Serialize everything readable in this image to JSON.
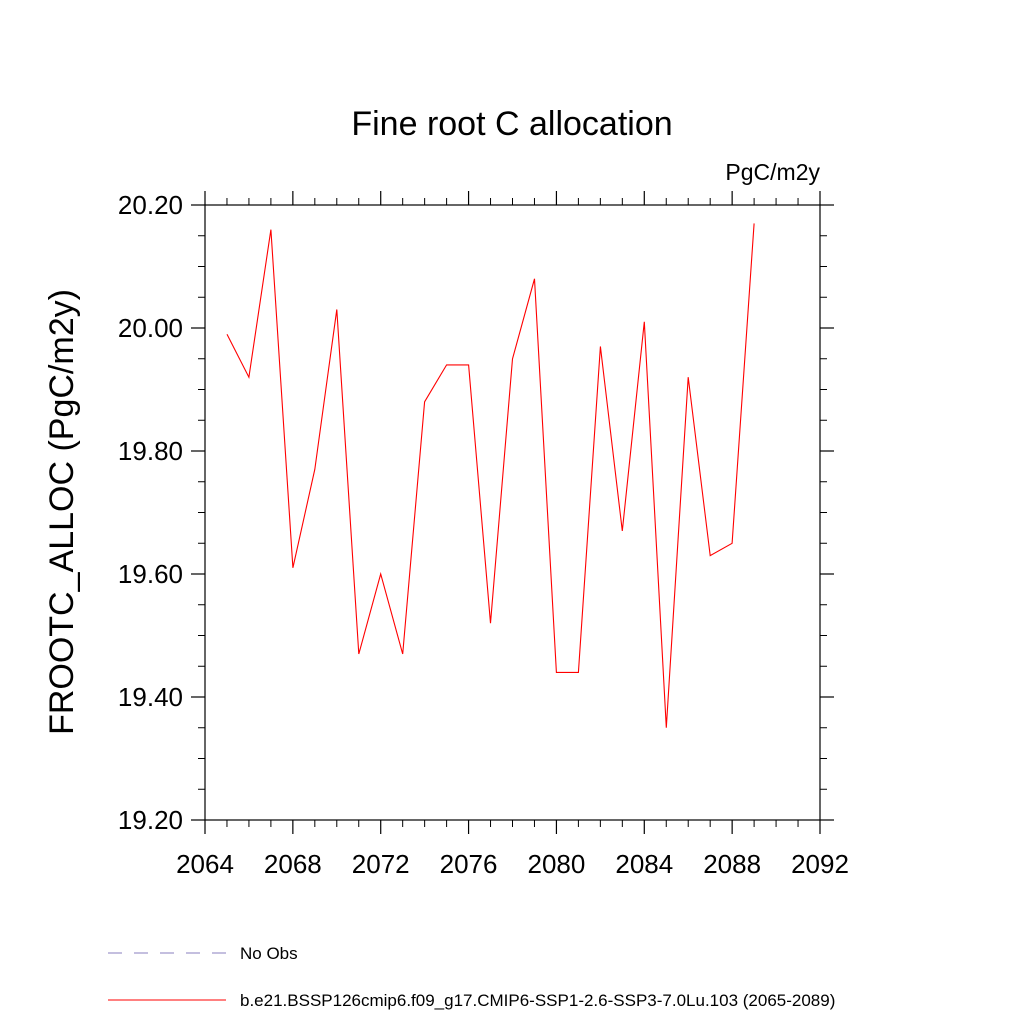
{
  "chart_data": {
    "type": "line",
    "title": "Fine root C allocation",
    "units_label": "PgC/m2y",
    "ylabel": "FROOTC_ALLOC  (PgC/m2y)",
    "xlabel": "",
    "xlim": [
      2064,
      2092
    ],
    "ylim": [
      19.2,
      20.2
    ],
    "x_ticks": [
      2064,
      2068,
      2072,
      2076,
      2080,
      2084,
      2088,
      2092
    ],
    "x_tick_labels": [
      "2064",
      "2068",
      "2072",
      "2076",
      "2080",
      "2084",
      "2088",
      "2092"
    ],
    "y_ticks": [
      19.2,
      19.4,
      19.6,
      19.8,
      20.0,
      20.2
    ],
    "y_tick_labels": [
      "19.20",
      "19.40",
      "19.60",
      "19.80",
      "20.00",
      "20.20"
    ],
    "grid": false,
    "series": [
      {
        "name": "b.e21.BSSP126cmip6.f09_g17.CMIP6-SSP1-2.6-SSP3-7.0Lu.103 (2065-2089)",
        "color": "#ff0000",
        "style": "solid",
        "x": [
          2065,
          2066,
          2067,
          2068,
          2069,
          2070,
          2071,
          2072,
          2073,
          2074,
          2075,
          2076,
          2077,
          2078,
          2079,
          2080,
          2081,
          2082,
          2083,
          2084,
          2085,
          2086,
          2087,
          2088,
          2089
        ],
        "values": [
          19.99,
          19.92,
          20.16,
          19.61,
          19.77,
          20.03,
          19.47,
          19.6,
          19.47,
          19.88,
          19.94,
          19.94,
          19.52,
          19.95,
          20.08,
          19.44,
          19.44,
          19.97,
          19.67,
          20.01,
          19.35,
          19.92,
          19.63,
          19.65,
          20.17
        ]
      }
    ],
    "legend": [
      {
        "label": "No Obs",
        "color": "#8a7fbf",
        "style": "dashed"
      },
      {
        "label": "b.e21.BSSP126cmip6.f09_g17.CMIP6-SSP1-2.6-SSP3-7.0Lu.103 (2065-2089)",
        "color": "#ff0000",
        "style": "solid"
      }
    ],
    "legend_position": "bottom-left"
  }
}
